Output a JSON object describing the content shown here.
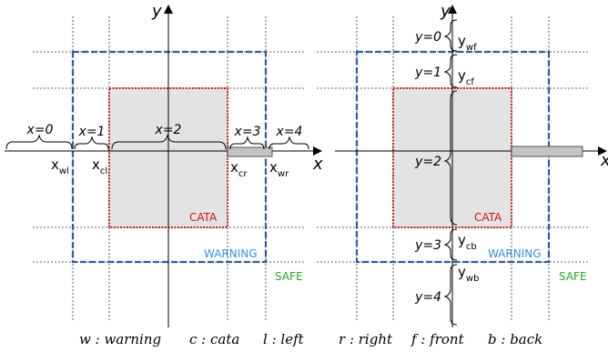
{
  "left_panel": {
    "axis_x": "x",
    "axis_y": "y",
    "regions": [
      {
        "id": "x0",
        "label": "x=0"
      },
      {
        "id": "x1",
        "label": "x=1"
      },
      {
        "id": "x2",
        "label": "x=2"
      },
      {
        "id": "x3",
        "label": "x=3"
      },
      {
        "id": "x4",
        "label": "x=4"
      }
    ],
    "boundaries": [
      {
        "id": "wl",
        "base": "x",
        "sub": "wl"
      },
      {
        "id": "cl",
        "base": "x",
        "sub": "cl"
      },
      {
        "id": "cr",
        "base": "x",
        "sub": "cr"
      },
      {
        "id": "wr",
        "base": "x",
        "sub": "wr"
      }
    ],
    "zones": {
      "cata": "CATA",
      "warning": "WARNING",
      "safe": "SAFE"
    }
  },
  "right_panel": {
    "axis_x": "x",
    "axis_y": "y",
    "regions": [
      {
        "id": "y0",
        "label": "y=0"
      },
      {
        "id": "y1",
        "label": "y=1"
      },
      {
        "id": "y2",
        "label": "y=2"
      },
      {
        "id": "y3",
        "label": "y=3"
      },
      {
        "id": "y4",
        "label": "y=4"
      }
    ],
    "boundaries": [
      {
        "id": "wf",
        "base": "y",
        "sub": "wf"
      },
      {
        "id": "cf",
        "base": "y",
        "sub": "cf"
      },
      {
        "id": "cb",
        "base": "y",
        "sub": "cb"
      },
      {
        "id": "wb",
        "base": "y",
        "sub": "wb"
      }
    ],
    "zones": {
      "cata": "CATA",
      "warning": "WARNING",
      "safe": "SAFE"
    }
  },
  "legend": [
    {
      "key": "w",
      "text": "warning"
    },
    {
      "key": "c",
      "text": "cata"
    },
    {
      "key": "l",
      "text": "left"
    },
    {
      "key": "r",
      "text": "right"
    },
    {
      "key": "f",
      "text": "front"
    },
    {
      "key": "b",
      "text": "back"
    }
  ],
  "legend_separator": " : ",
  "colors": {
    "cata_border": "#cc2222",
    "cata_fill": "#e3e3e3",
    "cata_text": "#dd1111",
    "warning_border": "#2e5f9e",
    "warning_text": "#3a8fdc",
    "safe_text": "#22aa22",
    "grid_line": "#333333",
    "axis": "#000000"
  }
}
